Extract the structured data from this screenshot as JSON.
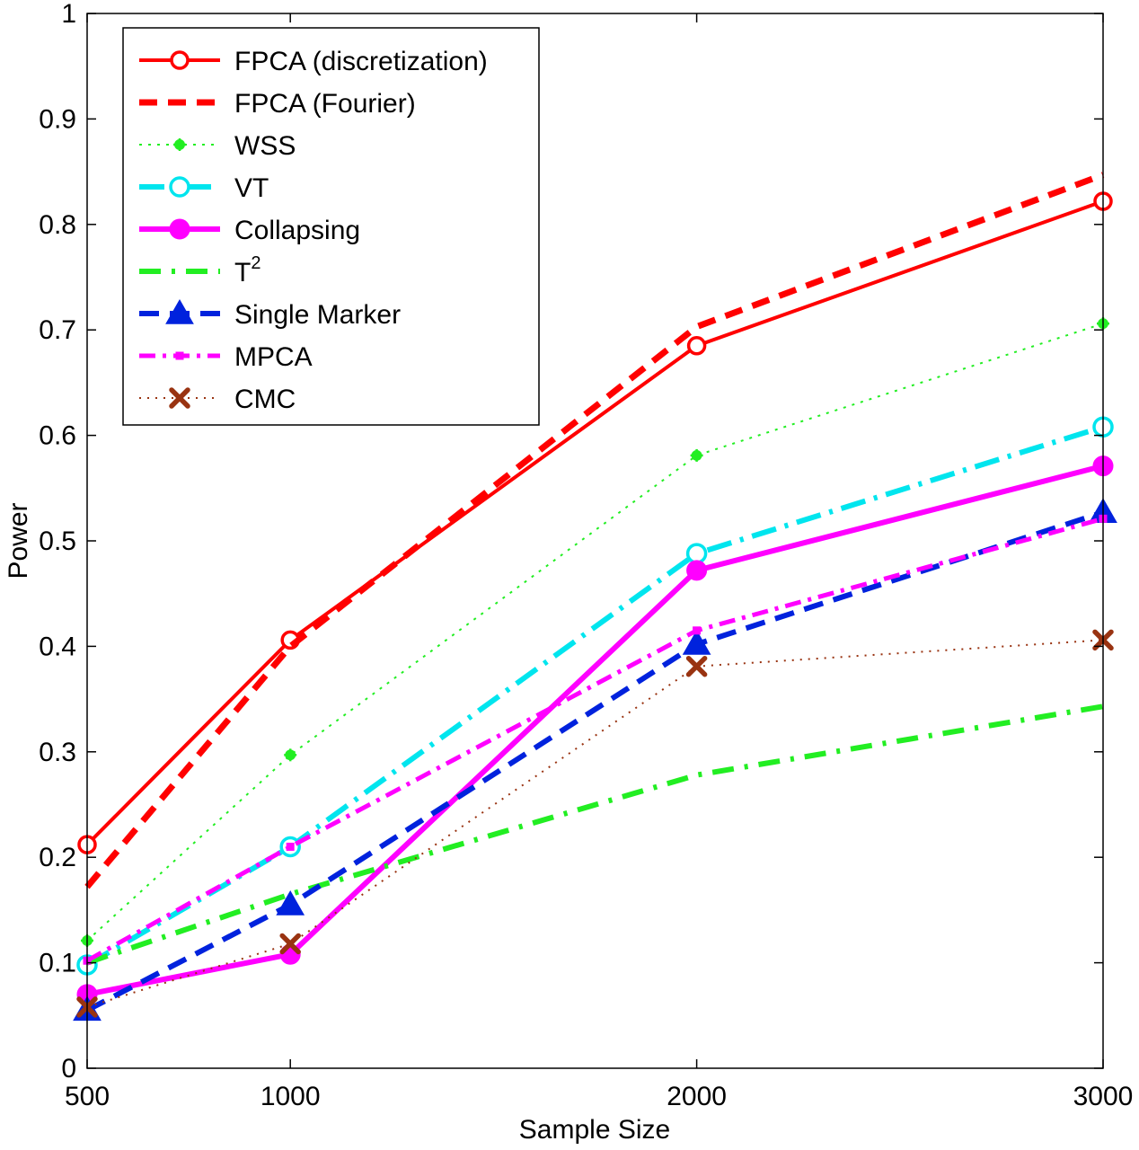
{
  "chart_data": {
    "type": "line",
    "xlabel": "Sample Size",
    "ylabel": "Power",
    "x": [
      500,
      1000,
      2000,
      3000
    ],
    "x_ticks": [
      "500",
      "1000",
      "2000",
      "3000"
    ],
    "y_ticks": [
      "0",
      "0.1",
      "0.2",
      "0.3",
      "0.4",
      "0.5",
      "0.6",
      "0.7",
      "0.8",
      "0.9",
      "1"
    ],
    "xlim": [
      500,
      3000
    ],
    "ylim": [
      0,
      1
    ],
    "grid": false,
    "legend_position": "top-left",
    "series": [
      {
        "name": "FPCA (discretization)",
        "legend_html": "FPCA (discretization)",
        "values": [
          0.212,
          0.406,
          0.685,
          0.822
        ],
        "color": "#ff0000",
        "dash": "",
        "width": 4,
        "marker": "open-circle",
        "marker_size": 9,
        "show_markers": true
      },
      {
        "name": "FPCA (Fourier)",
        "values": [
          0.172,
          0.4,
          0.703,
          0.847
        ],
        "color": "#ff0000",
        "dash": "20,12",
        "width": 7,
        "marker": "none",
        "marker_size": 0,
        "show_markers": false
      },
      {
        "name": "WSS",
        "values": [
          0.121,
          0.297,
          0.581,
          0.706
        ],
        "color": "#22ee22",
        "dash": "3,7",
        "width": 2,
        "marker": "filled-star",
        "marker_size": 7,
        "show_markers": true
      },
      {
        "name": "VT",
        "values": [
          0.098,
          0.21,
          0.488,
          0.608
        ],
        "color": "#00e5ee",
        "dash": "28,10,4,10",
        "width": 6,
        "marker": "open-circle",
        "marker_size": 10,
        "show_markers": true
      },
      {
        "name": "Collapsing",
        "values": [
          0.07,
          0.108,
          0.472,
          0.571
        ],
        "color": "#ff00ff",
        "dash": "",
        "width": 6,
        "marker": "filled-circle",
        "marker_size": 11,
        "show_markers": true
      },
      {
        "name": "T^2",
        "values": [
          0.1,
          0.165,
          0.278,
          0.343
        ],
        "color": "#22ee22",
        "dash": "24,12,4,12",
        "width": 6,
        "marker": "none",
        "marker_size": 0,
        "show_markers": false
      },
      {
        "name": "Single Marker",
        "values": [
          0.055,
          0.155,
          0.402,
          0.527
        ],
        "color": "#0022dd",
        "dash": "22,12",
        "width": 6,
        "marker": "filled-triangle",
        "marker_size": 15,
        "show_markers": true
      },
      {
        "name": "MPCA",
        "values": [
          0.102,
          0.21,
          0.415,
          0.521
        ],
        "color": "#ff00ff",
        "dash": "18,8,4,8",
        "width": 5,
        "marker": "filled-square",
        "marker_size": 7,
        "show_markers": true
      },
      {
        "name": "CMC",
        "values": [
          0.058,
          0.118,
          0.381,
          0.406
        ],
        "color": "#993311",
        "dash": "2,7",
        "width": 2,
        "marker": "x-mark",
        "marker_size": 9,
        "show_markers": true
      }
    ]
  }
}
